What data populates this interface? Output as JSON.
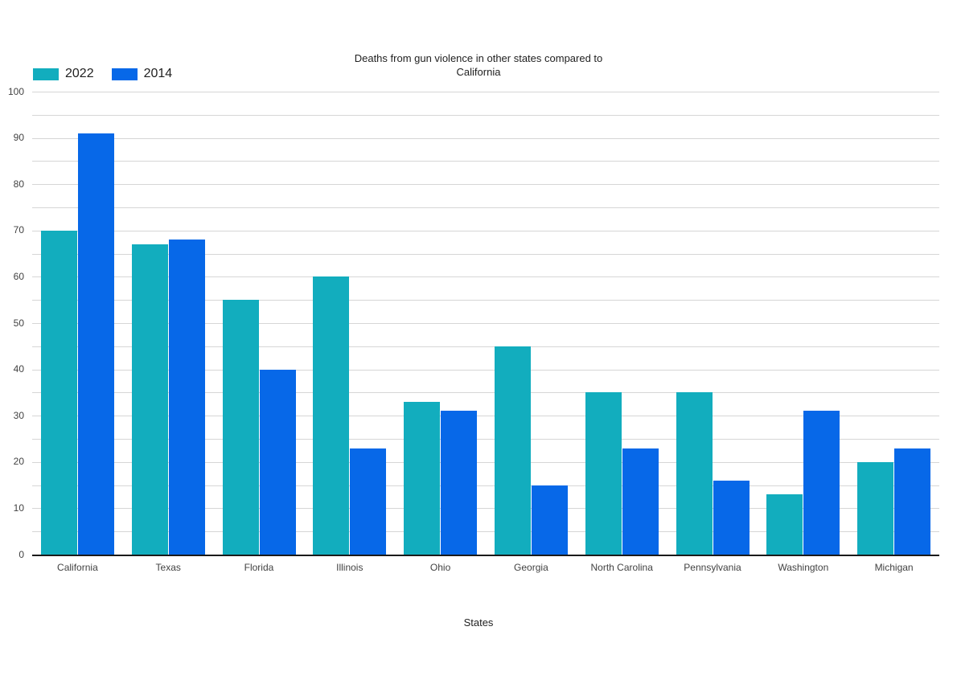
{
  "chart_data": {
    "type": "bar",
    "title": "Deaths from gun violence in other states compared to California",
    "xlabel": "States",
    "ylabel": "",
    "categories": [
      "California",
      "Texas",
      "Florida",
      "Illinois",
      "Ohio",
      "Georgia",
      "North Carolina",
      "Pennsylvania",
      "Washington",
      "Michigan"
    ],
    "series": [
      {
        "name": "2022",
        "color": "#12adbe",
        "values": [
          70,
          67,
          55,
          60,
          33,
          45,
          35,
          35,
          13,
          20
        ]
      },
      {
        "name": "2014",
        "color": "#0768e8",
        "values": [
          91,
          68,
          40,
          23,
          31,
          15,
          23,
          16,
          31,
          23
        ]
      }
    ],
    "ylim": [
      0,
      100
    ],
    "yticks": [
      0,
      10,
      20,
      30,
      40,
      50,
      60,
      70,
      80,
      90,
      100
    ],
    "grid_step": 5,
    "grid_on": true,
    "legend_position": "top-left"
  },
  "colors": {
    "gridline": "#d6d6d6",
    "axis": "#1a1a1a",
    "title_text": "#212121",
    "tick_text": "#424242",
    "background": "#ffffff"
  }
}
